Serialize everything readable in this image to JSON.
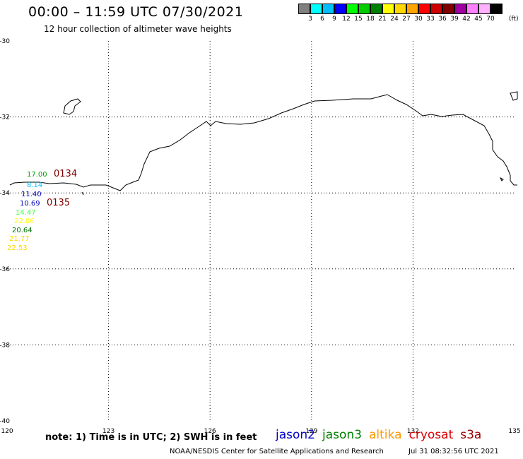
{
  "header": {
    "title": "00:00 – 11:59 UTC 07/30/2021",
    "subtitle": "12 hour collection of altimeter wave heights"
  },
  "colorbar": {
    "unit": "(ft)",
    "colors": [
      "#808080",
      "#00ffff",
      "#00bfff",
      "#0000ff",
      "#00ff00",
      "#00cc00",
      "#008000",
      "#ffff00",
      "#ffd700",
      "#ffa500",
      "#ff0000",
      "#cc0000",
      "#800000",
      "#a000a0",
      "#ff80ff",
      "#ffb0ff",
      "#000000"
    ],
    "labels": [
      "3",
      "6",
      "9",
      "12",
      "15",
      "18",
      "21",
      "24",
      "27",
      "30",
      "33",
      "36",
      "39",
      "42",
      "45",
      "70"
    ]
  },
  "map": {
    "lon_range": [
      120,
      135
    ],
    "lat_range": [
      -40,
      -30
    ],
    "lon_ticks": [
      "120",
      "123",
      "126",
      "129",
      "132",
      "135"
    ],
    "lat_ticks": [
      "-30",
      "-32",
      "-34",
      "-36",
      "-38",
      "-40"
    ],
    "grid": "dotted"
  },
  "observations": {
    "passes": [
      {
        "label": "0134",
        "color": "#800000"
      },
      {
        "label": "0135",
        "color": "#800000"
      }
    ],
    "values": [
      {
        "text": "17.00",
        "color": "#00a000"
      },
      {
        "text": "8.14",
        "color": "#00bfff"
      },
      {
        "text": "11.40",
        "color": "#0000c0"
      },
      {
        "text": "10.69",
        "color": "#0000c0"
      },
      {
        "text": "14.47",
        "color": "#40ff40"
      },
      {
        "text": "22.06",
        "color": "#ffff00"
      },
      {
        "text": "20.64",
        "color": "#007000"
      },
      {
        "text": "21.77",
        "color": "#ffd700"
      },
      {
        "text": "22.53",
        "color": "#ffd700"
      }
    ]
  },
  "footer": {
    "note": "note: 1) Time is in UTC; 2) SWH is in feet",
    "missions": [
      {
        "name": "jason2",
        "color": "#0000cc"
      },
      {
        "name": "jason3",
        "color": "#008000"
      },
      {
        "name": "altika",
        "color": "#ff9900"
      },
      {
        "name": "cryosat",
        "color": "#dd0000"
      },
      {
        "name": "s3a",
        "color": "#990000"
      }
    ],
    "credit": "NOAA/NESDIS Center for Satellite Applications and Research",
    "timestamp": "Jul 31 08:32:56 UTC 2021"
  }
}
